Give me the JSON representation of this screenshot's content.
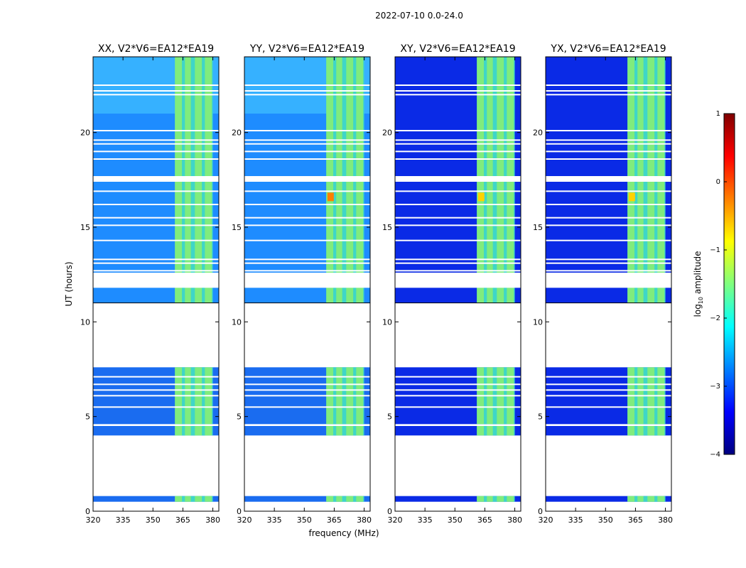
{
  "figure": {
    "suptitle": "2022-07-10 0.0-24.0"
  },
  "chart_data": {
    "type": "heatmap",
    "xlabel": "frequency (MHz)",
    "ylabel": "UT (hours)",
    "xlim": [
      320,
      383
    ],
    "ylim": [
      0,
      24
    ],
    "xticks": [
      "320",
      "335",
      "350",
      "365",
      "380"
    ],
    "xtick_values": [
      320,
      335,
      350,
      365,
      380
    ],
    "yticks": [
      "0",
      "5",
      "10",
      "15",
      "20"
    ],
    "ytick_values": [
      0,
      5,
      10,
      15,
      20
    ],
    "panels": [
      {
        "title": "XX, V2*V6=EA12*EA19",
        "background": "strong"
      },
      {
        "title": "YY, V2*V6=EA12*EA19",
        "background": "strong"
      },
      {
        "title": "XY, V2*V6=EA12*EA19",
        "background": "weak"
      },
      {
        "title": "YX, V2*V6=EA12*EA19",
        "background": "weak"
      }
    ],
    "data_segments_ut": [
      [
        0.5,
        0.8
      ],
      [
        4.0,
        4.5
      ],
      [
        4.6,
        7.6
      ],
      [
        11.0,
        24.0
      ]
    ],
    "gaps_ut": [
      [
        11.8,
        12.6
      ],
      [
        17.4,
        17.7
      ]
    ],
    "flag_lines_ut": [
      4.55,
      5.5,
      6.1,
      6.4,
      6.7,
      7.1,
      12.7,
      13.1,
      13.3,
      14.3,
      15.1,
      15.5,
      16.2,
      16.9,
      18.6,
      19.0,
      19.4,
      19.6,
      20.1,
      22.0,
      22.2,
      22.5
    ],
    "rfi_band_mhz": [
      361,
      380
    ],
    "colorbar": {
      "label": "log",
      "label_sub": "10",
      "label_suffix": " amplitude",
      "ticks": [
        "1",
        "0",
        "−1",
        "−2",
        "−3",
        "−4"
      ],
      "tick_values": [
        1,
        0,
        -1,
        -2,
        -3,
        -4
      ],
      "range": [
        -4,
        1
      ],
      "cmap": [
        "#00007f",
        "#0000ff",
        "#007fff",
        "#00ffff",
        "#7fff7f",
        "#ffff00",
        "#ff7f00",
        "#ff0000",
        "#7f0000"
      ]
    }
  }
}
